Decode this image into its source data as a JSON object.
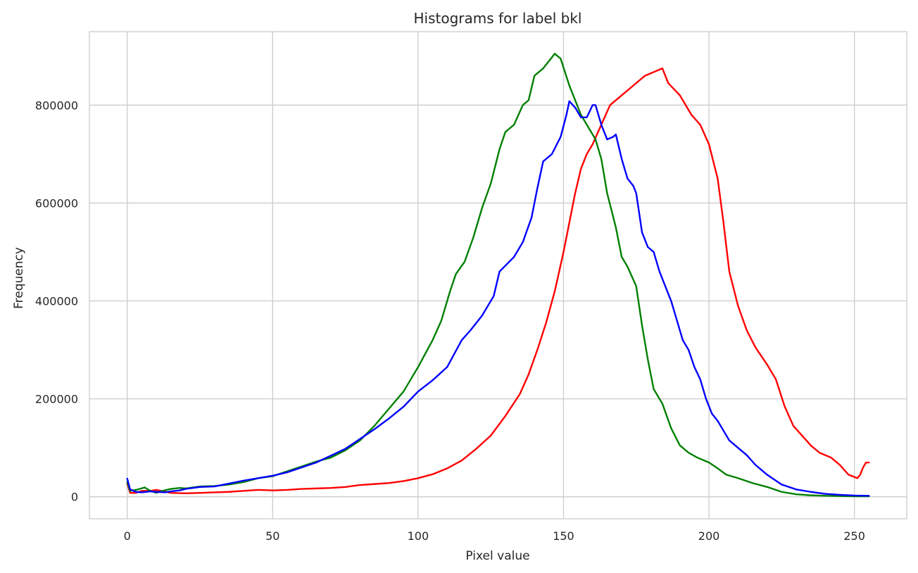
{
  "chart_data": {
    "type": "line",
    "title": "Histograms for label bkl",
    "xlabel": "Pixel value",
    "ylabel": "Frequency",
    "xlim": [
      -13,
      268
    ],
    "ylim": [
      -45000,
      950000
    ],
    "xticks": [
      0,
      50,
      100,
      150,
      200,
      250
    ],
    "yticks": [
      0,
      200000,
      400000,
      600000,
      800000
    ],
    "grid": true,
    "legend": "none",
    "series": [
      {
        "color": "#ff0000",
        "points": [
          [
            0,
            27000
          ],
          [
            1,
            8000
          ],
          [
            3,
            8000
          ],
          [
            5,
            12000
          ],
          [
            8,
            12000
          ],
          [
            10,
            14000
          ],
          [
            15,
            8000
          ],
          [
            20,
            7000
          ],
          [
            25,
            8000
          ],
          [
            30,
            9000
          ],
          [
            35,
            10000
          ],
          [
            40,
            12000
          ],
          [
            45,
            14000
          ],
          [
            50,
            13000
          ],
          [
            55,
            14000
          ],
          [
            60,
            16000
          ],
          [
            65,
            17000
          ],
          [
            70,
            18000
          ],
          [
            75,
            20000
          ],
          [
            80,
            24000
          ],
          [
            85,
            26000
          ],
          [
            90,
            28000
          ],
          [
            95,
            32000
          ],
          [
            100,
            38000
          ],
          [
            105,
            46000
          ],
          [
            110,
            58000
          ],
          [
            115,
            74000
          ],
          [
            120,
            98000
          ],
          [
            125,
            125000
          ],
          [
            130,
            165000
          ],
          [
            135,
            210000
          ],
          [
            138,
            250000
          ],
          [
            141,
            300000
          ],
          [
            144,
            355000
          ],
          [
            147,
            420000
          ],
          [
            150,
            500000
          ],
          [
            152,
            560000
          ],
          [
            154,
            620000
          ],
          [
            156,
            670000
          ],
          [
            158,
            700000
          ],
          [
            160,
            720000
          ],
          [
            163,
            760000
          ],
          [
            166,
            800000
          ],
          [
            170,
            820000
          ],
          [
            174,
            840000
          ],
          [
            178,
            860000
          ],
          [
            180,
            865000
          ],
          [
            184,
            875000
          ],
          [
            186,
            845000
          ],
          [
            190,
            820000
          ],
          [
            194,
            780000
          ],
          [
            197,
            760000
          ],
          [
            200,
            720000
          ],
          [
            203,
            650000
          ],
          [
            205,
            560000
          ],
          [
            207,
            460000
          ],
          [
            210,
            390000
          ],
          [
            213,
            340000
          ],
          [
            216,
            305000
          ],
          [
            220,
            270000
          ],
          [
            223,
            240000
          ],
          [
            226,
            185000
          ],
          [
            229,
            145000
          ],
          [
            232,
            125000
          ],
          [
            235,
            105000
          ],
          [
            238,
            90000
          ],
          [
            242,
            80000
          ],
          [
            245,
            65000
          ],
          [
            248,
            45000
          ],
          [
            251,
            38000
          ],
          [
            252,
            45000
          ],
          [
            253,
            60000
          ],
          [
            254,
            70000
          ],
          [
            255,
            70000
          ]
        ]
      },
      {
        "color": "#008000",
        "points": [
          [
            0,
            30000
          ],
          [
            1,
            12000
          ],
          [
            3,
            14000
          ],
          [
            6,
            19000
          ],
          [
            8,
            12000
          ],
          [
            10,
            8000
          ],
          [
            12,
            12000
          ],
          [
            15,
            16000
          ],
          [
            18,
            18000
          ],
          [
            20,
            17000
          ],
          [
            25,
            21000
          ],
          [
            30,
            22000
          ],
          [
            35,
            25000
          ],
          [
            40,
            30000
          ],
          [
            45,
            38000
          ],
          [
            50,
            42000
          ],
          [
            55,
            52000
          ],
          [
            60,
            62000
          ],
          [
            65,
            72000
          ],
          [
            70,
            80000
          ],
          [
            75,
            95000
          ],
          [
            80,
            115000
          ],
          [
            85,
            145000
          ],
          [
            90,
            180000
          ],
          [
            95,
            215000
          ],
          [
            100,
            265000
          ],
          [
            105,
            320000
          ],
          [
            108,
            360000
          ],
          [
            111,
            420000
          ],
          [
            113,
            455000
          ],
          [
            116,
            480000
          ],
          [
            119,
            530000
          ],
          [
            122,
            590000
          ],
          [
            125,
            640000
          ],
          [
            128,
            710000
          ],
          [
            130,
            745000
          ],
          [
            133,
            760000
          ],
          [
            136,
            800000
          ],
          [
            138,
            810000
          ],
          [
            140,
            860000
          ],
          [
            143,
            875000
          ],
          [
            145,
            890000
          ],
          [
            147,
            905000
          ],
          [
            149,
            895000
          ],
          [
            152,
            840000
          ],
          [
            154,
            810000
          ],
          [
            156,
            780000
          ],
          [
            158,
            760000
          ],
          [
            161,
            730000
          ],
          [
            163,
            690000
          ],
          [
            165,
            620000
          ],
          [
            168,
            550000
          ],
          [
            170,
            490000
          ],
          [
            172,
            470000
          ],
          [
            175,
            430000
          ],
          [
            177,
            350000
          ],
          [
            179,
            280000
          ],
          [
            181,
            220000
          ],
          [
            184,
            190000
          ],
          [
            187,
            140000
          ],
          [
            190,
            105000
          ],
          [
            193,
            90000
          ],
          [
            196,
            80000
          ],
          [
            200,
            70000
          ],
          [
            203,
            58000
          ],
          [
            206,
            45000
          ],
          [
            210,
            38000
          ],
          [
            215,
            28000
          ],
          [
            220,
            20000
          ],
          [
            225,
            10000
          ],
          [
            230,
            5000
          ],
          [
            235,
            3000
          ],
          [
            240,
            2000
          ],
          [
            250,
            1000
          ],
          [
            255,
            1000
          ]
        ]
      },
      {
        "color": "#0000ff",
        "points": [
          [
            0,
            37000
          ],
          [
            1,
            15000
          ],
          [
            3,
            10000
          ],
          [
            5,
            9000
          ],
          [
            8,
            11000
          ],
          [
            10,
            10000
          ],
          [
            13,
            9000
          ],
          [
            15,
            11000
          ],
          [
            18,
            13000
          ],
          [
            20,
            16000
          ],
          [
            25,
            20000
          ],
          [
            30,
            21000
          ],
          [
            35,
            27000
          ],
          [
            40,
            33000
          ],
          [
            45,
            38000
          ],
          [
            50,
            43000
          ],
          [
            55,
            50000
          ],
          [
            60,
            60000
          ],
          [
            65,
            70000
          ],
          [
            70,
            84000
          ],
          [
            75,
            98000
          ],
          [
            80,
            118000
          ],
          [
            85,
            138000
          ],
          [
            90,
            160000
          ],
          [
            95,
            184000
          ],
          [
            100,
            215000
          ],
          [
            105,
            238000
          ],
          [
            110,
            265000
          ],
          [
            115,
            320000
          ],
          [
            118,
            340000
          ],
          [
            122,
            370000
          ],
          [
            126,
            410000
          ],
          [
            128,
            460000
          ],
          [
            131,
            478000
          ],
          [
            133,
            490000
          ],
          [
            136,
            520000
          ],
          [
            139,
            570000
          ],
          [
            141,
            630000
          ],
          [
            143,
            685000
          ],
          [
            146,
            700000
          ],
          [
            149,
            735000
          ],
          [
            151,
            780000
          ],
          [
            152,
            808000
          ],
          [
            154,
            795000
          ],
          [
            156,
            775000
          ],
          [
            158,
            775000
          ],
          [
            160,
            800000
          ],
          [
            161,
            800000
          ],
          [
            163,
            760000
          ],
          [
            165,
            730000
          ],
          [
            167,
            735000
          ],
          [
            168,
            740000
          ],
          [
            170,
            690000
          ],
          [
            172,
            650000
          ],
          [
            174,
            635000
          ],
          [
            175,
            620000
          ],
          [
            177,
            540000
          ],
          [
            179,
            510000
          ],
          [
            181,
            500000
          ],
          [
            183,
            460000
          ],
          [
            185,
            430000
          ],
          [
            187,
            400000
          ],
          [
            189,
            360000
          ],
          [
            191,
            320000
          ],
          [
            193,
            300000
          ],
          [
            195,
            265000
          ],
          [
            197,
            240000
          ],
          [
            199,
            200000
          ],
          [
            201,
            170000
          ],
          [
            203,
            155000
          ],
          [
            205,
            135000
          ],
          [
            207,
            115000
          ],
          [
            210,
            100000
          ],
          [
            213,
            85000
          ],
          [
            216,
            65000
          ],
          [
            218,
            55000
          ],
          [
            220,
            45000
          ],
          [
            225,
            25000
          ],
          [
            230,
            15000
          ],
          [
            235,
            10000
          ],
          [
            240,
            6000
          ],
          [
            245,
            4000
          ],
          [
            250,
            2500
          ],
          [
            255,
            2000
          ]
        ]
      }
    ]
  }
}
